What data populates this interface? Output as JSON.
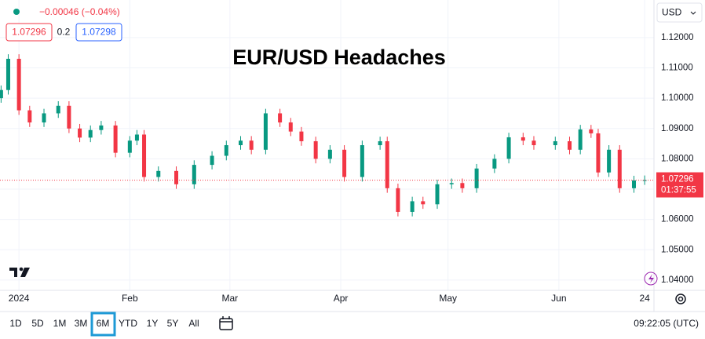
{
  "symbol_header": {
    "change": "−0.00046 (−0.04%)",
    "bid": 1.07296,
    "spread": 0.2,
    "ask": 1.07298,
    "currency": "USD"
  },
  "chart_data": {
    "type": "candlestick",
    "title": "EUR/USD Headaches",
    "x": [
      -4,
      -2,
      1,
      4,
      8,
      12,
      15,
      18,
      21,
      24,
      28,
      32,
      34,
      36,
      40,
      45,
      50,
      55,
      59,
      63,
      66,
      70,
      74,
      77,
      80,
      84,
      88,
      92,
      97,
      102,
      104,
      107,
      111,
      114,
      118,
      122,
      125,
      129,
      134,
      138,
      142,
      145,
      151,
      155,
      158,
      161,
      163,
      166,
      169,
      173,
      176
    ],
    "open": [
      1.1,
      1.1027,
      1.113,
      1.096,
      1.092,
      1.095,
      1.0975,
      1.09,
      1.087,
      1.0895,
      1.091,
      1.082,
      1.086,
      1.088,
      1.074,
      1.076,
      1.0716,
      1.078,
      1.081,
      1.0845,
      1.086,
      1.083,
      1.095,
      1.092,
      1.089,
      1.0858,
      1.08,
      1.083,
      1.074,
      1.0845,
      1.0858,
      1.0703,
      1.0625,
      1.066,
      1.065,
      1.0716,
      1.072,
      1.0703,
      1.0768,
      1.08,
      1.0871,
      1.086,
      1.0845,
      1.0858,
      1.083,
      1.0897,
      1.0884,
      1.0755,
      1.083,
      1.0703,
      1.0729
    ],
    "high": [
      1.1042,
      1.1145,
      1.1145,
      1.0975,
      1.0965,
      1.099,
      1.099,
      1.0915,
      1.091,
      1.0925,
      1.0925,
      1.0875,
      1.0895,
      1.0895,
      1.0775,
      1.0775,
      1.0795,
      1.0825,
      1.086,
      1.0875,
      1.0875,
      1.0965,
      1.0965,
      1.0935,
      1.0905,
      1.0873,
      1.0845,
      1.0845,
      1.086,
      1.0873,
      1.0873,
      1.0718,
      1.0675,
      1.0675,
      1.0731,
      1.0735,
      1.0735,
      1.0783,
      1.0815,
      1.0886,
      1.0886,
      1.0875,
      1.0873,
      1.0873,
      1.0912,
      1.0912,
      1.0899,
      1.0845,
      1.0845,
      1.0744,
      1.0745
    ],
    "low": [
      1.0985,
      1.1012,
      1.0945,
      1.0905,
      1.0905,
      1.0935,
      1.0885,
      1.0855,
      1.0855,
      1.088,
      1.0805,
      1.0805,
      1.0845,
      1.0725,
      1.0725,
      1.0701,
      1.0701,
      1.0765,
      1.0795,
      1.083,
      1.0815,
      1.0815,
      1.0905,
      1.0875,
      1.0843,
      1.0785,
      1.0785,
      1.0725,
      1.0725,
      1.083,
      1.0688,
      1.061,
      1.061,
      1.0635,
      1.0635,
      1.0701,
      1.0688,
      1.0688,
      1.0753,
      1.0785,
      1.0845,
      1.083,
      1.083,
      1.0815,
      1.0815,
      1.0869,
      1.074,
      1.074,
      1.0688,
      1.0688,
      1.0714
    ],
    "close": [
      1.1027,
      1.113,
      1.096,
      1.092,
      1.095,
      1.0975,
      1.09,
      1.087,
      1.0895,
      1.091,
      1.082,
      1.086,
      1.088,
      1.074,
      1.076,
      1.0716,
      1.078,
      1.081,
      1.0845,
      1.086,
      1.083,
      1.095,
      1.092,
      1.089,
      1.0858,
      1.08,
      1.083,
      1.074,
      1.0845,
      1.0858,
      1.0703,
      1.0625,
      1.066,
      1.065,
      1.0716,
      1.072,
      1.0703,
      1.0768,
      1.08,
      1.0871,
      1.086,
      1.0845,
      1.0858,
      1.083,
      1.0897,
      1.0884,
      1.0755,
      1.083,
      1.0703,
      1.0729,
      1.07296
    ],
    "up_color": "#089981",
    "down_color": "#f23645",
    "xlim": [
      -4.3,
      178.6
    ],
    "xticks": [
      {
        "value": 1,
        "label": "2024"
      },
      {
        "value": 32,
        "label": "Feb"
      },
      {
        "value": 60,
        "label": "Mar"
      },
      {
        "value": 91,
        "label": "Apr"
      },
      {
        "value": 121,
        "label": "May"
      },
      {
        "value": 152,
        "label": "Jun"
      },
      {
        "value": 176,
        "label": "24"
      }
    ],
    "ylim": [
      1.0366,
      1.1324
    ],
    "yticks": [
      {
        "value": 1.04,
        "label": "1.04000"
      },
      {
        "value": 1.05,
        "label": "1.05000"
      },
      {
        "value": 1.06,
        "label": "1.06000"
      },
      {
        "value": 1.07,
        "label": "1.07000"
      },
      {
        "value": 1.08,
        "label": "1.08000"
      },
      {
        "value": 1.09,
        "label": "1.09000"
      },
      {
        "value": 1.1,
        "label": "1.10000"
      },
      {
        "value": 1.11,
        "label": "1.11000"
      },
      {
        "value": 1.12,
        "label": "1.12000"
      }
    ],
    "grid": true,
    "last_price": 1.07296,
    "countdown": "01:37:55"
  },
  "toolbar": {
    "ranges": [
      "1D",
      "5D",
      "1M",
      "3M",
      "6M",
      "YTD",
      "1Y",
      "5Y",
      "All"
    ],
    "active_range": 4,
    "clock": "09:22:05 (UTC)"
  }
}
